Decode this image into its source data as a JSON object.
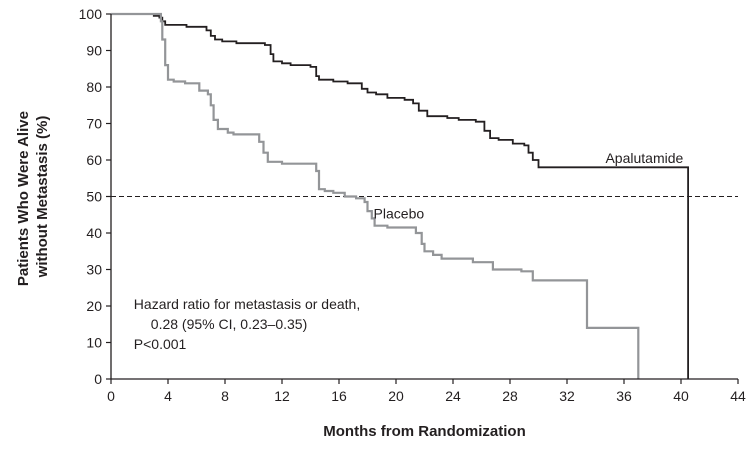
{
  "chart_data": {
    "type": "line",
    "subtype": "kaplan-meier",
    "title": "",
    "xlabel": "Months from Randomization",
    "ylabel_lines": [
      "Patients Who Were Alive",
      "without Metastasis (%)"
    ],
    "xlim": [
      0,
      44
    ],
    "ylim": [
      0,
      100
    ],
    "xticks": [
      0,
      4,
      8,
      12,
      16,
      20,
      24,
      28,
      32,
      36,
      40,
      44
    ],
    "yticks": [
      0,
      10,
      20,
      30,
      40,
      50,
      60,
      70,
      80,
      90,
      100
    ],
    "grid": false,
    "reference_line": {
      "y": 50,
      "style": "dashed"
    },
    "series": [
      {
        "name": "Apalutamide",
        "color": "#231f20",
        "steps": [
          [
            0,
            100
          ],
          [
            2.6,
            100
          ],
          [
            3.0,
            99.5
          ],
          [
            3.4,
            99
          ],
          [
            3.6,
            98
          ],
          [
            3.8,
            97
          ],
          [
            5.3,
            96.5
          ],
          [
            6.7,
            95.5
          ],
          [
            7.0,
            94
          ],
          [
            7.3,
            93
          ],
          [
            7.8,
            92.5
          ],
          [
            8.8,
            92
          ],
          [
            10.8,
            91.5
          ],
          [
            11.2,
            89
          ],
          [
            11.4,
            87
          ],
          [
            12.0,
            86.5
          ],
          [
            12.6,
            86
          ],
          [
            14.0,
            85.5
          ],
          [
            14.4,
            83
          ],
          [
            14.6,
            82
          ],
          [
            15.6,
            81.5
          ],
          [
            16.6,
            81
          ],
          [
            17.6,
            79.5
          ],
          [
            18.0,
            78.5
          ],
          [
            18.6,
            78
          ],
          [
            19.4,
            77
          ],
          [
            20.6,
            76.5
          ],
          [
            21.2,
            75.5
          ],
          [
            21.6,
            73.5
          ],
          [
            22.2,
            72
          ],
          [
            23.6,
            71.5
          ],
          [
            24.4,
            71
          ],
          [
            25.6,
            70.5
          ],
          [
            26.2,
            68
          ],
          [
            26.6,
            66
          ],
          [
            27.2,
            65.5
          ],
          [
            28.2,
            64.5
          ],
          [
            29.0,
            64
          ],
          [
            29.3,
            62
          ],
          [
            29.6,
            60
          ],
          [
            30.0,
            58
          ],
          [
            40.5,
            58
          ],
          [
            40.5,
            0
          ]
        ]
      },
      {
        "name": "Placebo",
        "color": "#939598",
        "steps": [
          [
            0,
            100
          ],
          [
            3.4,
            100
          ],
          [
            3.5,
            98
          ],
          [
            3.6,
            93
          ],
          [
            3.8,
            86
          ],
          [
            4.0,
            82
          ],
          [
            4.4,
            81.5
          ],
          [
            5.2,
            81
          ],
          [
            6.2,
            79
          ],
          [
            6.8,
            78
          ],
          [
            7.0,
            75
          ],
          [
            7.2,
            71
          ],
          [
            7.5,
            68.5
          ],
          [
            8.2,
            67.5
          ],
          [
            8.6,
            67
          ],
          [
            10.4,
            65
          ],
          [
            10.7,
            62
          ],
          [
            11.0,
            59.5
          ],
          [
            12.0,
            59
          ],
          [
            14.4,
            57
          ],
          [
            14.6,
            52
          ],
          [
            15.0,
            51.5
          ],
          [
            15.6,
            51
          ],
          [
            16.4,
            50
          ],
          [
            17.2,
            49.5
          ],
          [
            17.8,
            48.5
          ],
          [
            18.0,
            46
          ],
          [
            18.3,
            44
          ],
          [
            18.5,
            42
          ],
          [
            19.4,
            41.5
          ],
          [
            21.4,
            40
          ],
          [
            21.8,
            37
          ],
          [
            22.0,
            35
          ],
          [
            22.6,
            34
          ],
          [
            23.2,
            33
          ],
          [
            25.4,
            32
          ],
          [
            26.8,
            30
          ],
          [
            28.8,
            29.5
          ],
          [
            29.6,
            27
          ],
          [
            33.4,
            27
          ],
          [
            33.4,
            14
          ],
          [
            37.0,
            14
          ],
          [
            37.0,
            0
          ]
        ]
      }
    ],
    "series_labels": [
      {
        "text": "Apalutamide",
        "x": 34.7,
        "y": 60.5,
        "anchor": "start"
      },
      {
        "text": "Placebo",
        "x": 20.2,
        "y": 45.4,
        "anchor": "middle"
      }
    ],
    "annotation": {
      "lines": [
        "Hazard ratio for metastasis or death,",
        "0.28 (95% CI, 0.23–0.35)",
        "P<0.001"
      ],
      "x": 1.6,
      "y": 20.5
    }
  }
}
